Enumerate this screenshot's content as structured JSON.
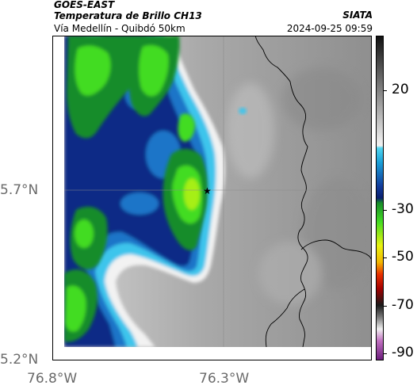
{
  "header": {
    "satellite": "GOES-EAST",
    "product": "Temperatura de Brillo CH13",
    "area": "Vía Medellín - Quibdó 50km",
    "organization": "SIATA",
    "timestamp": "2024-09-25 09:59"
  },
  "axes": {
    "lat_labels": [
      "5.7°N",
      "5.2°N"
    ],
    "lon_labels": [
      "76.8°W",
      "76.3°W"
    ]
  },
  "colorbar": {
    "tick_labels": [
      "20",
      "-30",
      "-50",
      "-70",
      "-90"
    ],
    "tick_values": [
      20,
      -30,
      -50,
      -70,
      -90
    ],
    "range": [
      -93,
      43
    ],
    "stops": [
      {
        "t": 43,
        "color": "#111111"
      },
      {
        "t": 0,
        "color": "#e6e6e6"
      },
      {
        "t": -3,
        "color": "#f2f2f2"
      },
      {
        "t": -4,
        "color": "#4fd5f0"
      },
      {
        "t": -10,
        "color": "#1aa0d8"
      },
      {
        "t": -20,
        "color": "#123c9c"
      },
      {
        "t": -25,
        "color": "#0a1f6e"
      },
      {
        "t": -27,
        "color": "#178c2a"
      },
      {
        "t": -35,
        "color": "#43dc22"
      },
      {
        "t": -45,
        "color": "#e8f210"
      },
      {
        "t": -52,
        "color": "#f2b600"
      },
      {
        "t": -57,
        "color": "#e83000"
      },
      {
        "t": -63,
        "color": "#a40000"
      },
      {
        "t": -70,
        "color": "#1a1a1a"
      },
      {
        "t": -75,
        "color": "#7a7a7a"
      },
      {
        "t": -80,
        "color": "#f0f0f0"
      },
      {
        "t": -85,
        "color": "#c070c0"
      },
      {
        "t": -93,
        "color": "#6a1a7a"
      }
    ]
  },
  "map": {
    "marker": "star-icon",
    "colors": {
      "clear_sky": "#a4a4a4",
      "cloud_white": "#f2f2f2",
      "cloud_cyan": "#3ec5ec",
      "cloud_blue": "#1a74c8",
      "cloud_navy": "#0c2a86",
      "cloud_green": "#3ccd24",
      "cloud_yellowgreen": "#a6ef18",
      "gridline": "#8a8a8a",
      "border": "#000000"
    }
  }
}
